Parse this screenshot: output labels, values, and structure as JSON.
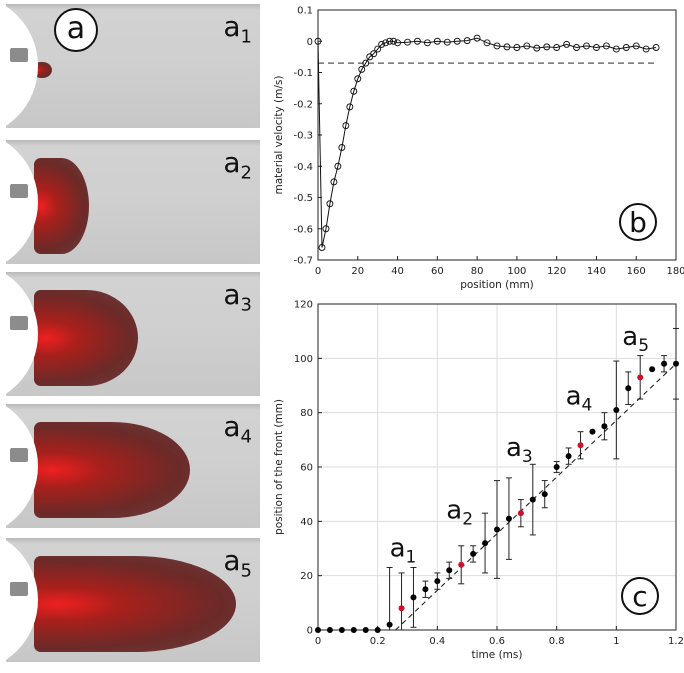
{
  "panel_a": {
    "badge": "a",
    "frames": [
      {
        "label_main": "a",
        "label_sub": "1",
        "spread": 0.08
      },
      {
        "label_main": "a",
        "label_sub": "2",
        "spread": 0.24
      },
      {
        "label_main": "a",
        "label_sub": "3",
        "spread": 0.45
      },
      {
        "label_main": "a",
        "label_sub": "4",
        "spread": 0.68
      },
      {
        "label_main": "a",
        "label_sub": "5",
        "spread": 0.88
      }
    ]
  },
  "chart_data": [
    {
      "id": "b",
      "type": "line",
      "badge": "b",
      "xlabel": "position (mm)",
      "ylabel": "material velocity (m/s)",
      "xlim": [
        0,
        180
      ],
      "ylim": [
        -0.7,
        0.1
      ],
      "xticks": [
        0,
        20,
        40,
        60,
        80,
        100,
        120,
        140,
        160,
        180
      ],
      "yticks": [
        0.1,
        0,
        -0.1,
        -0.2,
        -0.3,
        -0.4,
        -0.5,
        -0.6,
        -0.7
      ],
      "reference_line": {
        "y": -0.07,
        "style": "dashed"
      },
      "grid": false,
      "series": [
        {
          "x": [
            0,
            2,
            4,
            6,
            8,
            10,
            12,
            14,
            16,
            18,
            20,
            22,
            24,
            26,
            28,
            30,
            32,
            34,
            36,
            38,
            40,
            45,
            50,
            55,
            60,
            65,
            70,
            75,
            80,
            85,
            90,
            95,
            100,
            105,
            110,
            115,
            120,
            125,
            130,
            135,
            140,
            145,
            150,
            155,
            160,
            165,
            170
          ],
          "y": [
            0,
            -0.66,
            -0.6,
            -0.52,
            -0.45,
            -0.4,
            -0.34,
            -0.27,
            -0.21,
            -0.16,
            -0.12,
            -0.09,
            -0.07,
            -0.05,
            -0.04,
            -0.025,
            -0.01,
            -0.005,
            0,
            0,
            -0.005,
            -0.003,
            0,
            -0.005,
            0,
            -0.003,
            0,
            0.002,
            0.01,
            -0.005,
            -0.015,
            -0.018,
            -0.02,
            -0.015,
            -0.022,
            -0.018,
            -0.02,
            -0.01,
            -0.02,
            -0.015,
            -0.02,
            -0.015,
            -0.025,
            -0.02,
            -0.015,
            -0.025,
            -0.02
          ]
        }
      ]
    },
    {
      "id": "c",
      "type": "scatter",
      "badge": "c",
      "xlabel": "time (ms)",
      "ylabel": "position of the front (mm)",
      "xlim": [
        0,
        1.2
      ],
      "ylim": [
        0,
        120
      ],
      "xticks": [
        0,
        0.2,
        0.4,
        0.6,
        0.8,
        1,
        1.2
      ],
      "xtick_labels": [
        "0",
        "0.2",
        "0.4",
        "0.6",
        "0.8",
        "1",
        "1.2"
      ],
      "yticks": [
        0,
        20,
        40,
        60,
        80,
        100,
        120
      ],
      "grid": true,
      "fit_line": {
        "x": [
          0.26,
          1.2
        ],
        "y": [
          0,
          98
        ],
        "style": "dashed"
      },
      "points": [
        {
          "x": 0,
          "y": 0,
          "err": 0
        },
        {
          "x": 0.04,
          "y": 0,
          "err": 0
        },
        {
          "x": 0.08,
          "y": 0,
          "err": 0
        },
        {
          "x": 0.12,
          "y": 0,
          "err": 0
        },
        {
          "x": 0.16,
          "y": 0,
          "err": 0
        },
        {
          "x": 0.2,
          "y": 0,
          "err": 0
        },
        {
          "x": 0.24,
          "y": 2,
          "err": 21
        },
        {
          "x": 0.28,
          "y": 8,
          "err": 13,
          "highlight": true
        },
        {
          "x": 0.32,
          "y": 12,
          "err": 11
        },
        {
          "x": 0.36,
          "y": 15,
          "err": 3
        },
        {
          "x": 0.4,
          "y": 18,
          "err": 3
        },
        {
          "x": 0.44,
          "y": 22,
          "err": 3
        },
        {
          "x": 0.48,
          "y": 24,
          "err": 7,
          "highlight": true
        },
        {
          "x": 0.52,
          "y": 28,
          "err": 3
        },
        {
          "x": 0.56,
          "y": 32,
          "err": 11
        },
        {
          "x": 0.6,
          "y": 37,
          "err": 18
        },
        {
          "x": 0.64,
          "y": 41,
          "err": 15
        },
        {
          "x": 0.68,
          "y": 43,
          "err": 5,
          "highlight": true
        },
        {
          "x": 0.72,
          "y": 48,
          "err": 13
        },
        {
          "x": 0.76,
          "y": 50,
          "err": 5
        },
        {
          "x": 0.8,
          "y": 60,
          "err": 2
        },
        {
          "x": 0.84,
          "y": 64,
          "err": 3
        },
        {
          "x": 0.88,
          "y": 68,
          "err": 5,
          "highlight": true
        },
        {
          "x": 0.92,
          "y": 73,
          "err": 0
        },
        {
          "x": 0.96,
          "y": 75,
          "err": 5
        },
        {
          "x": 1.0,
          "y": 81,
          "err": 18
        },
        {
          "x": 1.04,
          "y": 89,
          "err": 6
        },
        {
          "x": 1.08,
          "y": 93,
          "err": 8,
          "highlight": true
        },
        {
          "x": 1.12,
          "y": 96,
          "err": 0
        },
        {
          "x": 1.16,
          "y": 98,
          "err": 3
        },
        {
          "x": 1.2,
          "y": 98,
          "err": 13
        }
      ],
      "annotations": [
        {
          "main": "a",
          "sub": "1",
          "x": 0.24,
          "y": 27
        },
        {
          "main": "a",
          "sub": "2",
          "x": 0.43,
          "y": 41
        },
        {
          "main": "a",
          "sub": "3",
          "x": 0.63,
          "y": 64
        },
        {
          "main": "a",
          "sub": "4",
          "x": 0.83,
          "y": 83
        },
        {
          "main": "a",
          "sub": "5",
          "x": 1.02,
          "y": 105
        }
      ],
      "colors": {
        "normal": "#000000",
        "highlight": "#d0102a"
      }
    }
  ]
}
